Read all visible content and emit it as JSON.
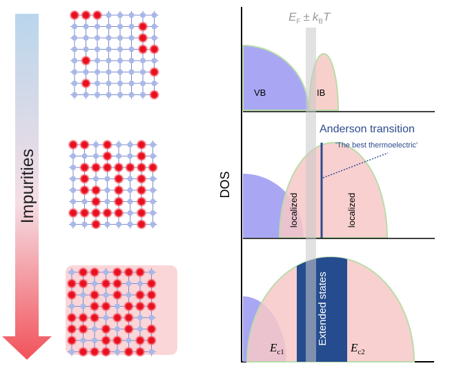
{
  "arrow_label": "Impurities",
  "axis_label": "DOS",
  "fermi_label": {
    "e": "E",
    "e_sub": "F",
    "pm": "±",
    "k": "k",
    "k_sub": "B",
    "t": "T"
  },
  "panel_1": {
    "vb": "VB",
    "ib": "IB"
  },
  "panel_2": {
    "transition": "Anderson transition",
    "note": "'The best thermoelectric'",
    "left": "localized",
    "right": "localized"
  },
  "panel_3": {
    "band": "Extended states",
    "ec1": {
      "e": "E",
      "sub": "c1"
    },
    "ec2": {
      "e": "E",
      "sub": "c2"
    }
  }
}
